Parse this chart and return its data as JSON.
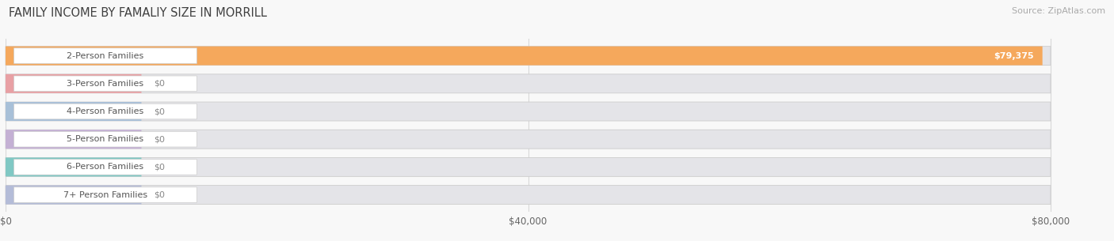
{
  "title": "FAMILY INCOME BY FAMALIY SIZE IN MORRILL",
  "source": "Source: ZipAtlas.com",
  "categories": [
    "2-Person Families",
    "3-Person Families",
    "4-Person Families",
    "5-Person Families",
    "6-Person Families",
    "7+ Person Families"
  ],
  "values": [
    79375,
    0,
    0,
    0,
    0,
    0
  ],
  "bar_colors": [
    "#f5a85c",
    "#e8a0a4",
    "#a8c0d8",
    "#c4b0d4",
    "#80c8c4",
    "#b4bcd8"
  ],
  "bar_bg_color": "#e4e4e8",
  "value_labels": [
    "$79,375",
    "$0",
    "$0",
    "$0",
    "$0",
    "$0"
  ],
  "x_tick_labels": [
    "$0",
    "$40,000",
    "$80,000"
  ],
  "x_tick_values": [
    0,
    40000,
    80000
  ],
  "max_val": 80000,
  "xlim_max": 84000,
  "fig_width": 14.06,
  "fig_height": 3.05,
  "title_fontsize": 10.5,
  "source_fontsize": 8,
  "bar_label_fontsize": 8,
  "value_fontsize": 8,
  "tick_fontsize": 8.5,
  "background_color": "#f8f8f8",
  "title_color": "#404040",
  "source_color": "#aaaaaa",
  "label_text_color": "#555555",
  "grid_color": "#d8d8d8"
}
